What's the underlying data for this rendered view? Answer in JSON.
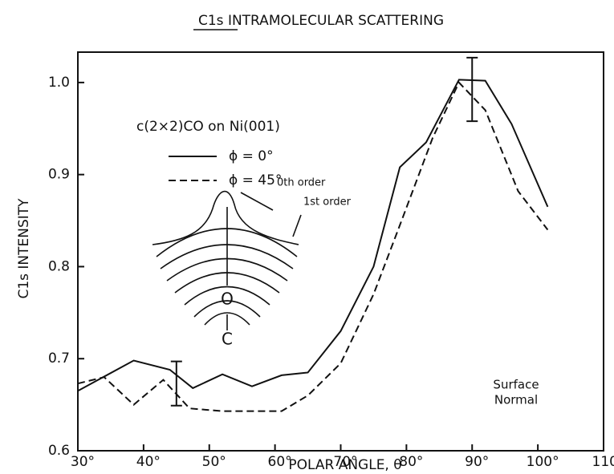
{
  "chart_data": {
    "type": "line",
    "title": "C1s INTRAMOLECULAR SCATTERING",
    "x_label": "POLAR ANGLE, θ",
    "y_label": "C1s INTENSITY",
    "xlim": [
      30,
      110
    ],
    "ylim": [
      0.6,
      1.033
    ],
    "xticks": [
      {
        "value": 30,
        "label": "30°"
      },
      {
        "value": 40,
        "label": "40°"
      },
      {
        "value": 50,
        "label": "50°"
      },
      {
        "value": 60,
        "label": "60°"
      },
      {
        "value": 70,
        "label": "70°"
      },
      {
        "value": 80,
        "label": "80°"
      },
      {
        "value": 90,
        "label": "90°"
      },
      {
        "value": 100,
        "label": "100°"
      },
      {
        "value": 110,
        "label": "110°"
      }
    ],
    "yticks": [
      0.6,
      0.7,
      0.8,
      0.9,
      {
        "value": 1,
        "label": "1.0"
      }
    ],
    "legend_title": "c(2×2)CO on Ni(001)",
    "series": [
      {
        "name": "ϕ = 0°",
        "color": "#111111",
        "style": "solid",
        "x": [
          30,
          38.5,
          44,
          47.5,
          52,
          56.5,
          61,
          65,
          70,
          75,
          79,
          83,
          88,
          92,
          96,
          101.5
        ],
        "values": [
          0.665,
          0.698,
          0.688,
          0.668,
          0.683,
          0.67,
          0.682,
          0.685,
          0.73,
          0.8,
          0.908,
          0.935,
          1.003,
          1.002,
          0.955,
          0.865
        ]
      },
      {
        "name": "ϕ = 45°",
        "color": "#111111",
        "style": "dashed",
        "x": [
          30,
          34,
          38.5,
          43,
          47,
          52,
          61,
          65,
          70,
          75,
          79,
          84,
          88,
          92,
          97,
          101.5
        ],
        "values": [
          0.673,
          0.68,
          0.65,
          0.677,
          0.646,
          0.643,
          0.643,
          0.66,
          0.695,
          0.77,
          0.845,
          0.94,
          1.0,
          0.97,
          0.882,
          0.84
        ]
      }
    ],
    "error_bars": [
      {
        "x": 45,
        "low": 0.649,
        "high": 0.697
      },
      {
        "x": 90,
        "low": 0.958,
        "high": 1.027
      }
    ],
    "annotations": [
      "0th order",
      "1st order",
      "O",
      "C",
      "Surface",
      "Normal"
    ]
  }
}
